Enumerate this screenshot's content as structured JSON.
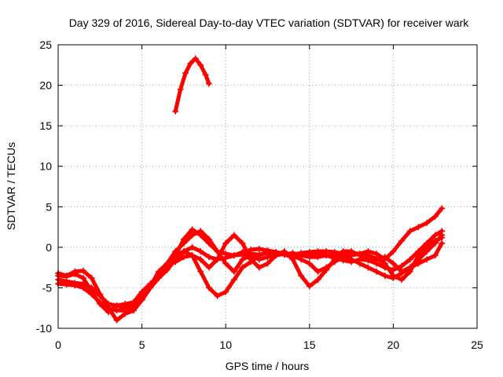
{
  "chart_data": {
    "type": "scatter",
    "title": "Day 329 of 2016, Sidereal Day-to-day VTEC variation (SDTVAR) for receiver wark",
    "xlabel": "GPS time / hours",
    "ylabel": "SDTVAR / TECUs",
    "xlim": [
      0,
      25
    ],
    "ylim": [
      -10,
      25
    ],
    "xticks": [
      0,
      5,
      10,
      15,
      20,
      25
    ],
    "yticks": [
      -10,
      -5,
      0,
      5,
      10,
      15,
      20,
      25
    ],
    "grid": true,
    "marker": "+",
    "color": "#ff0000",
    "series": [
      {
        "name": "s1",
        "x": [
          7.0,
          7.3,
          7.6,
          7.9,
          8.2,
          8.5,
          8.8,
          9.0
        ],
        "y": [
          16.8,
          19.5,
          21.5,
          22.7,
          23.3,
          22.5,
          21.3,
          20.2
        ]
      },
      {
        "name": "s2",
        "x": [
          0.0,
          0.5,
          1.0,
          1.5,
          2.0,
          2.5,
          3.0,
          3.5,
          4.0,
          4.5,
          5.0,
          5.5,
          6.0,
          6.5,
          7.0,
          7.5,
          8.0,
          8.5,
          9.0,
          9.5,
          10.0,
          10.5,
          11.0,
          11.5,
          12.0,
          12.5,
          13.0,
          13.5,
          14.0,
          14.5,
          15.0,
          15.5,
          16.0,
          16.5,
          17.0,
          17.5,
          18.0,
          18.5,
          19.0,
          19.5,
          20.0,
          20.5,
          21.0,
          21.5,
          22.0,
          22.5,
          22.9
        ],
        "y": [
          -4.0,
          -4.2,
          -4.4,
          -4.5,
          -5.0,
          -6.0,
          -7.0,
          -7.2,
          -7.0,
          -6.8,
          -5.5,
          -4.5,
          -3.5,
          -2.3,
          -1.0,
          1.0,
          2.2,
          1.5,
          0.5,
          -0.5,
          -0.8,
          -1.0,
          -0.9,
          -0.8,
          -0.9,
          -0.7,
          -0.6,
          -0.8,
          -0.9,
          -0.7,
          -0.6,
          -0.5,
          -0.5,
          -0.6,
          -0.8,
          -1.0,
          -0.8,
          -0.5,
          -0.8,
          -1.5,
          -0.5,
          0.8,
          2.0,
          2.5,
          3.0,
          3.8,
          4.8
        ]
      },
      {
        "name": "s3",
        "x": [
          0.0,
          0.5,
          1.0,
          1.5,
          2.0,
          2.5,
          3.0,
          3.5,
          4.0,
          4.5,
          5.0,
          5.5,
          6.0,
          6.5,
          7.0,
          7.5,
          8.0,
          8.5,
          9.0,
          9.5,
          10.0,
          10.5,
          11.0,
          11.5,
          12.0,
          12.5,
          13.0,
          13.5,
          14.0,
          14.5,
          15.0,
          15.5,
          16.0,
          16.5,
          17.0,
          17.5,
          18.0,
          18.5,
          19.0,
          19.5,
          20.0,
          20.5,
          21.0,
          21.5,
          22.0,
          22.5,
          22.9
        ],
        "y": [
          -4.5,
          -4.6,
          -4.7,
          -5.0,
          -5.8,
          -6.8,
          -7.5,
          -7.8,
          -7.8,
          -7.5,
          -6.5,
          -5.0,
          -3.8,
          -2.8,
          -1.5,
          -0.5,
          0.0,
          -0.5,
          -1.2,
          -1.5,
          -1.3,
          -1.0,
          -0.6,
          -0.3,
          -0.2,
          -0.4,
          -0.6,
          -0.9,
          -1.2,
          -1.0,
          -0.9,
          -0.8,
          -1.0,
          -1.3,
          -1.6,
          -1.8,
          -1.5,
          -1.6,
          -2.0,
          -2.5,
          -2.8,
          -2.3,
          -1.5,
          -0.5,
          0.5,
          1.5,
          2.0
        ]
      },
      {
        "name": "s4",
        "x": [
          0.0,
          0.5,
          1.0,
          1.5,
          2.0,
          2.5,
          3.0,
          3.5,
          4.0,
          4.5,
          5.0,
          5.5,
          6.0,
          6.5,
          7.0,
          7.5,
          8.0,
          8.5,
          9.0,
          9.5,
          10.0,
          10.5,
          11.0,
          11.5,
          12.0,
          12.5,
          13.0,
          13.5,
          14.0,
          14.5,
          15.0,
          15.5,
          16.0,
          16.5,
          17.0,
          17.5,
          18.0,
          18.5,
          19.0,
          19.5,
          20.0,
          20.5,
          21.0,
          21.5,
          22.0,
          22.5,
          22.9
        ],
        "y": [
          -3.5,
          -3.6,
          -3.3,
          -3.8,
          -5.5,
          -7.0,
          -8.0,
          -7.2,
          -7.5,
          -7.2,
          -6.0,
          -4.8,
          -3.0,
          -2.0,
          -0.5,
          0.5,
          1.5,
          2.0,
          1.0,
          -0.5,
          -2.0,
          -3.0,
          -1.5,
          -1.0,
          -1.5,
          -1.2,
          -1.0,
          -0.8,
          -1.0,
          -1.5,
          -2.0,
          -3.0,
          -2.5,
          -1.8,
          -1.2,
          -1.5,
          -2.0,
          -2.5,
          -3.0,
          -3.5,
          -3.8,
          -3.2,
          -2.5,
          -1.5,
          -0.5,
          0.5,
          1.5
        ]
      },
      {
        "name": "s5",
        "x": [
          0.0,
          0.5,
          1.0,
          1.5,
          2.0,
          2.5,
          3.0,
          3.5,
          4.0,
          4.5,
          5.0,
          5.5,
          6.0,
          6.5,
          7.0,
          7.5,
          8.0,
          8.5,
          9.0,
          9.5,
          10.0,
          10.5,
          11.0,
          11.5,
          12.0,
          12.5,
          13.0,
          13.5,
          14.0,
          14.5,
          15.0,
          15.5,
          16.0,
          16.5,
          17.0,
          17.5,
          18.0,
          18.5,
          19.0,
          19.5,
          20.0,
          20.5,
          21.0,
          21.5,
          22.0,
          22.5,
          22.9
        ],
        "y": [
          -3.2,
          -3.5,
          -3.0,
          -2.9,
          -3.8,
          -5.8,
          -7.5,
          -9.0,
          -8.2,
          -7.8,
          -6.5,
          -5.0,
          -3.5,
          -2.0,
          -1.0,
          -0.5,
          -1.0,
          -3.0,
          -5.0,
          -6.0,
          -5.5,
          -4.0,
          -2.5,
          -1.8,
          -1.0,
          -0.6,
          -0.8,
          -0.9,
          -0.7,
          -1.0,
          -1.2,
          -1.2,
          -1.0,
          -1.0,
          -0.8,
          -0.7,
          -0.8,
          -1.0,
          -1.4,
          -2.0,
          -3.5,
          -4.0,
          -3.0,
          -1.0,
          0.0,
          0.8,
          1.2
        ]
      },
      {
        "name": "s6",
        "x": [
          6.5,
          7.0,
          7.5,
          8.0,
          8.5,
          9.0,
          9.5,
          10.0,
          10.5,
          11.0,
          11.5,
          12.0,
          12.5,
          13.0,
          13.5,
          14.0,
          14.5,
          15.0,
          15.5,
          16.0,
          16.5,
          17.0,
          17.5,
          18.0,
          18.5,
          19.0,
          19.5,
          20.0,
          20.5,
          21.0,
          21.5,
          22.0,
          22.5,
          22.9
        ],
        "y": [
          -2.2,
          -1.8,
          -1.2,
          -1.0,
          -1.5,
          -2.5,
          -1.5,
          0.5,
          1.5,
          0.5,
          -1.5,
          -2.5,
          -2.0,
          -1.0,
          -0.5,
          -1.5,
          -3.5,
          -4.8,
          -4.0,
          -2.8,
          -1.5,
          -0.5,
          -0.5,
          -1.0,
          -1.5,
          -1.5,
          -1.2,
          -2.0,
          -3.0,
          -2.5,
          -2.0,
          -1.5,
          -1.0,
          0.5
        ]
      }
    ]
  }
}
